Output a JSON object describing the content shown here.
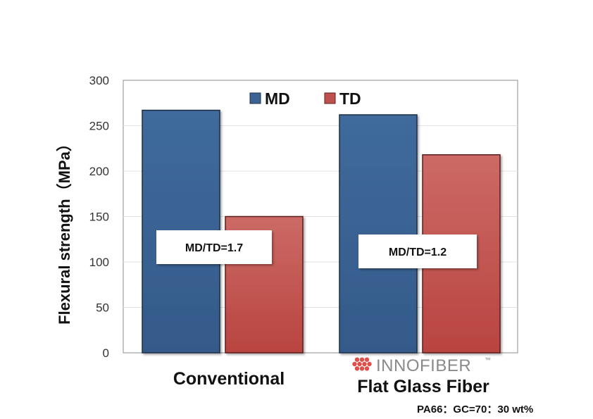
{
  "chart_data": {
    "type": "bar",
    "categories": [
      "Conventional",
      "Flat Glass Fiber"
    ],
    "series": [
      {
        "name": "MD",
        "values": [
          267,
          262
        ],
        "color": "#3b6495"
      },
      {
        "name": "TD",
        "values": [
          150,
          218
        ],
        "color": "#c0504d"
      }
    ],
    "ylabel": "Flexural strength（MPa）",
    "xlabel": "",
    "ylim": [
      0,
      300
    ],
    "yticks": [
      0,
      50,
      100,
      150,
      200,
      250,
      300
    ],
    "grid": true,
    "legend": "top-center",
    "annotations": [
      "MD/TD=1.7",
      "MD/TD=1.2"
    ],
    "brand_label": "INNOFIBER",
    "brand_mark": "™",
    "brand_icon": "dot-cluster-icon",
    "brand_color": "#e0504a",
    "footnote": "PA66：GC=70：30 wt%"
  }
}
